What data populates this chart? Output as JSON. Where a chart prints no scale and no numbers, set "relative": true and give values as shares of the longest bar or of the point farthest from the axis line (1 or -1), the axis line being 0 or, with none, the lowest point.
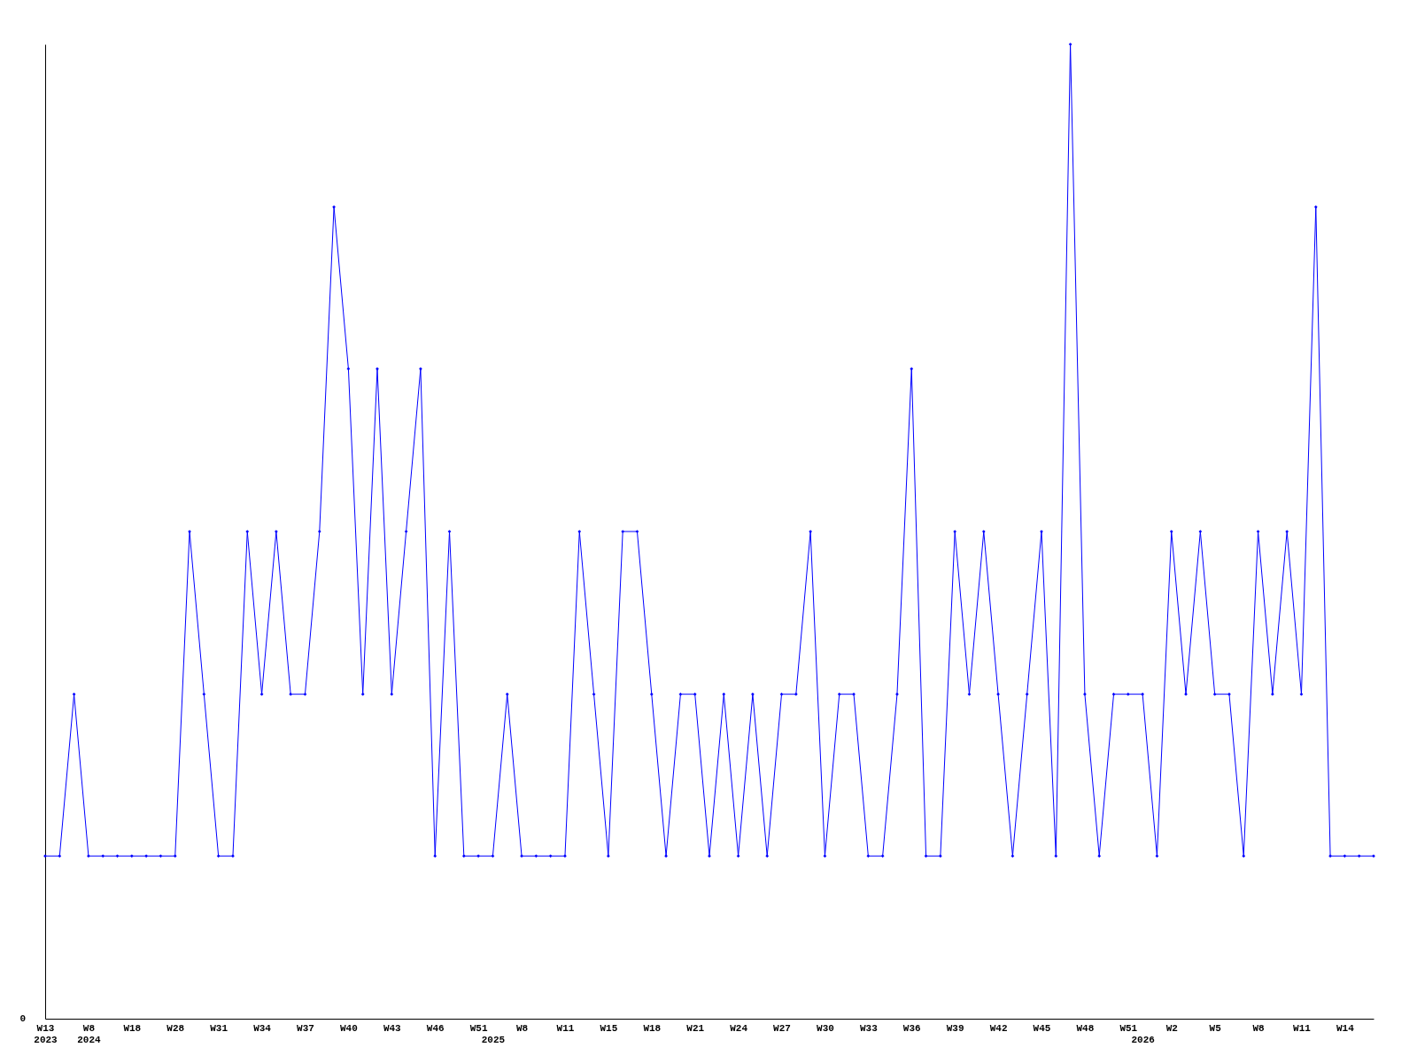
{
  "chart_data": {
    "type": "line",
    "relative": true,
    "marker": "diamond",
    "line_style": "solid",
    "grid": false,
    "categories": [
      "W13\n2023",
      null,
      null,
      "W8\n2024",
      null,
      null,
      "W18",
      null,
      null,
      "W28",
      null,
      null,
      "W31",
      null,
      null,
      "W34",
      null,
      null,
      "W37",
      null,
      null,
      "W40",
      null,
      null,
      "W43",
      null,
      null,
      "W46",
      null,
      null,
      "W51",
      "\n2025",
      null,
      "W8",
      null,
      null,
      "W11",
      null,
      null,
      "W15",
      null,
      null,
      "W18",
      null,
      null,
      "W21",
      null,
      null,
      "W24",
      null,
      null,
      "W27",
      null,
      null,
      "W30",
      null,
      null,
      "W33",
      null,
      null,
      "W36",
      null,
      null,
      "W39",
      null,
      null,
      "W42",
      null,
      null,
      "W45",
      null,
      null,
      "W48",
      null,
      null,
      "W51",
      "\n2026",
      null,
      "W2",
      null,
      null,
      "W5",
      null,
      null,
      "W8",
      null,
      null,
      "W11",
      null,
      null,
      "W14",
      null,
      null
    ],
    "series": [
      {
        "color": "#0000ff",
        "values": [
          0.167,
          0.167,
          0.333,
          0.167,
          0.167,
          0.167,
          0.167,
          0.167,
          0.167,
          0.167,
          0.5,
          0.333,
          0.167,
          0.167,
          0.5,
          0.333,
          0.5,
          0.333,
          0.333,
          0.5,
          0.833,
          0.667,
          0.333,
          0.667,
          0.333,
          0.5,
          0.667,
          0.167,
          0.5,
          0.167,
          0.167,
          0.167,
          0.333,
          0.167,
          0.167,
          0.167,
          0.167,
          0.5,
          0.333,
          0.167,
          0.5,
          0.5,
          0.333,
          0.167,
          0.333,
          0.333,
          0.167,
          0.333,
          0.167,
          0.333,
          0.167,
          0.333,
          0.333,
          0.5,
          0.167,
          0.333,
          0.333,
          0.167,
          0.167,
          0.333,
          0.667,
          0.167,
          0.167,
          0.5,
          0.333,
          0.5,
          0.333,
          0.167,
          0.333,
          0.5,
          0.167,
          1,
          0.333,
          0.167,
          0.333,
          0.333,
          0.333,
          0.167,
          0.5,
          0.333,
          0.5,
          0.333,
          0.333,
          0.167,
          0.5,
          0.333,
          0.5,
          0.333,
          0.833,
          0.167,
          0.167,
          0.167,
          0.167
        ]
      }
    ],
    "annotations": [
      "0"
    ]
  }
}
